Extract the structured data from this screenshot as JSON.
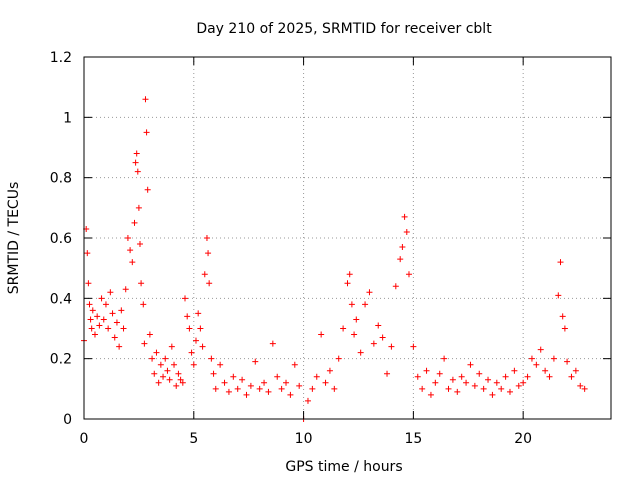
{
  "chart_data": {
    "type": "scatter",
    "title": "Day 210 of 2025, SRMTID for receiver cblt",
    "xlabel": "GPS time / hours",
    "ylabel": "SRMTID / TECUs",
    "xlim": [
      0,
      24
    ],
    "ylim": [
      0,
      1.2
    ],
    "xticks": [
      0,
      5,
      10,
      15,
      20
    ],
    "yticks": [
      0,
      0.2,
      0.4,
      0.6,
      0.8,
      1,
      1.2
    ],
    "xtick_labels": [
      "0",
      "5",
      "10",
      "15",
      "20"
    ],
    "ytick_labels": [
      "0",
      "0.2",
      "0.4",
      "0.6",
      "0.8",
      "1",
      "1.2"
    ],
    "grid": true,
    "marker": "+",
    "marker_color": "#ff0000",
    "series": [
      {
        "name": "SRMTID",
        "x": [
          0.0,
          0.1,
          0.15,
          0.2,
          0.25,
          0.3,
          0.35,
          0.4,
          0.5,
          0.6,
          0.7,
          0.8,
          0.9,
          1.0,
          1.1,
          1.2,
          1.3,
          1.4,
          1.5,
          1.6,
          1.7,
          1.8,
          1.9,
          2.0,
          2.1,
          2.2,
          2.3,
          2.35,
          2.4,
          2.45,
          2.5,
          2.55,
          2.6,
          2.7,
          2.75,
          2.8,
          2.85,
          2.9,
          3.0,
          3.1,
          3.2,
          3.3,
          3.4,
          3.5,
          3.6,
          3.7,
          3.8,
          3.9,
          4.0,
          4.1,
          4.2,
          4.3,
          4.4,
          4.5,
          4.6,
          4.7,
          4.8,
          4.9,
          5.0,
          5.1,
          5.2,
          5.3,
          5.4,
          5.5,
          5.6,
          5.65,
          5.7,
          5.8,
          5.9,
          6.0,
          6.2,
          6.4,
          6.6,
          6.8,
          7.0,
          7.2,
          7.4,
          7.6,
          7.8,
          8.0,
          8.2,
          8.4,
          8.6,
          8.8,
          9.0,
          9.2,
          9.4,
          9.6,
          9.8,
          10.0,
          10.2,
          10.4,
          10.6,
          10.8,
          11.0,
          11.2,
          11.4,
          11.6,
          11.8,
          12.0,
          12.1,
          12.2,
          12.3,
          12.4,
          12.6,
          12.8,
          13.0,
          13.2,
          13.4,
          13.6,
          13.8,
          14.0,
          14.2,
          14.4,
          14.5,
          14.6,
          14.7,
          14.8,
          15.0,
          15.2,
          15.4,
          15.6,
          15.8,
          16.0,
          16.2,
          16.4,
          16.6,
          16.8,
          17.0,
          17.2,
          17.4,
          17.6,
          17.8,
          18.0,
          18.2,
          18.4,
          18.6,
          18.8,
          19.0,
          19.2,
          19.4,
          19.6,
          19.8,
          20.0,
          20.2,
          20.4,
          20.6,
          20.8,
          21.0,
          21.2,
          21.4,
          21.6,
          21.7,
          21.8,
          21.9,
          22.0,
          22.2,
          22.4,
          22.6,
          22.8
        ],
        "y": [
          0.26,
          0.63,
          0.55,
          0.45,
          0.38,
          0.33,
          0.3,
          0.36,
          0.28,
          0.34,
          0.31,
          0.4,
          0.33,
          0.38,
          0.3,
          0.42,
          0.35,
          0.27,
          0.32,
          0.24,
          0.36,
          0.3,
          0.43,
          0.6,
          0.56,
          0.52,
          0.65,
          0.85,
          0.88,
          0.82,
          0.7,
          0.58,
          0.45,
          0.38,
          0.25,
          1.06,
          0.95,
          0.76,
          0.28,
          0.2,
          0.15,
          0.22,
          0.12,
          0.18,
          0.14,
          0.2,
          0.16,
          0.13,
          0.24,
          0.18,
          0.11,
          0.15,
          0.13,
          0.12,
          0.4,
          0.34,
          0.3,
          0.22,
          0.18,
          0.26,
          0.35,
          0.3,
          0.24,
          0.48,
          0.6,
          0.55,
          0.45,
          0.2,
          0.15,
          0.1,
          0.18,
          0.12,
          0.09,
          0.14,
          0.1,
          0.13,
          0.08,
          0.11,
          0.19,
          0.1,
          0.12,
          0.09,
          0.25,
          0.14,
          0.1,
          0.12,
          0.08,
          0.18,
          0.11,
          0.0,
          0.06,
          0.1,
          0.14,
          0.28,
          0.12,
          0.16,
          0.1,
          0.2,
          0.3,
          0.45,
          0.48,
          0.38,
          0.28,
          0.33,
          0.22,
          0.38,
          0.42,
          0.25,
          0.31,
          0.27,
          0.15,
          0.24,
          0.44,
          0.53,
          0.57,
          0.67,
          0.62,
          0.48,
          0.24,
          0.14,
          0.1,
          0.16,
          0.08,
          0.12,
          0.15,
          0.2,
          0.1,
          0.13,
          0.09,
          0.14,
          0.12,
          0.18,
          0.11,
          0.15,
          0.1,
          0.13,
          0.08,
          0.12,
          0.1,
          0.14,
          0.09,
          0.16,
          0.11,
          0.12,
          0.14,
          0.2,
          0.18,
          0.23,
          0.16,
          0.14,
          0.2,
          0.41,
          0.52,
          0.34,
          0.3,
          0.19,
          0.14,
          0.16,
          0.11,
          0.1
        ]
      }
    ]
  }
}
